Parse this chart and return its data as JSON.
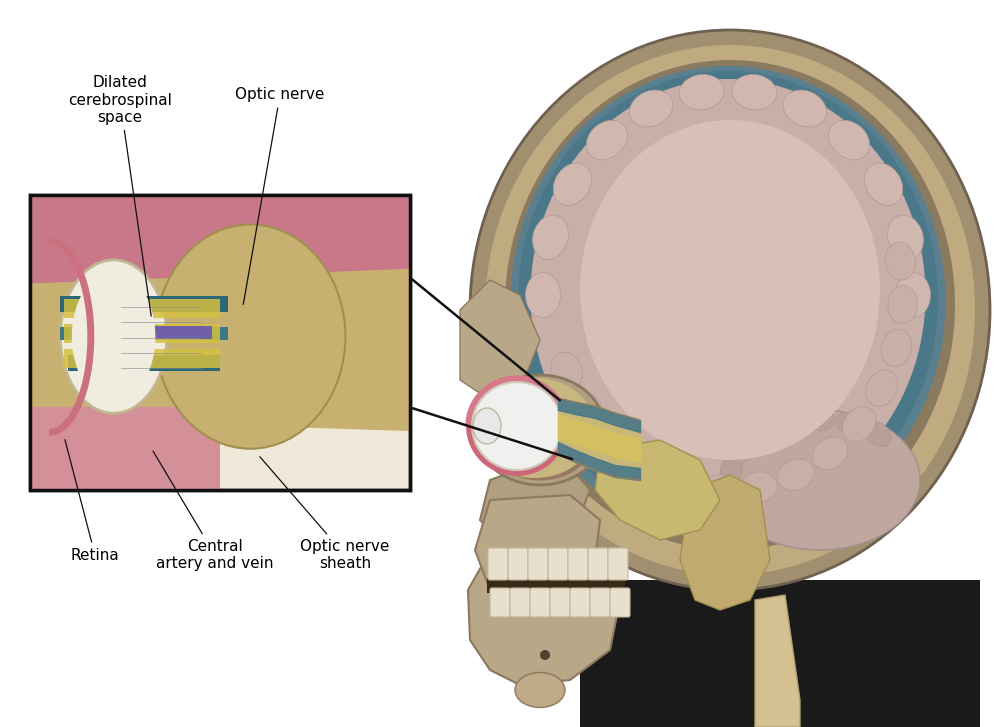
{
  "background_color": "#ffffff",
  "labels": {
    "dilated_csf": "Dilated\ncerebrospinal\nspace",
    "optic_nerve": "Optic nerve",
    "retina": "Retina",
    "central_artery": "Central\nartery and vein",
    "optic_nerve_sheath": "Optic nerve\nsheath"
  },
  "font_size": 11,
  "font_family": "DejaVu Sans"
}
